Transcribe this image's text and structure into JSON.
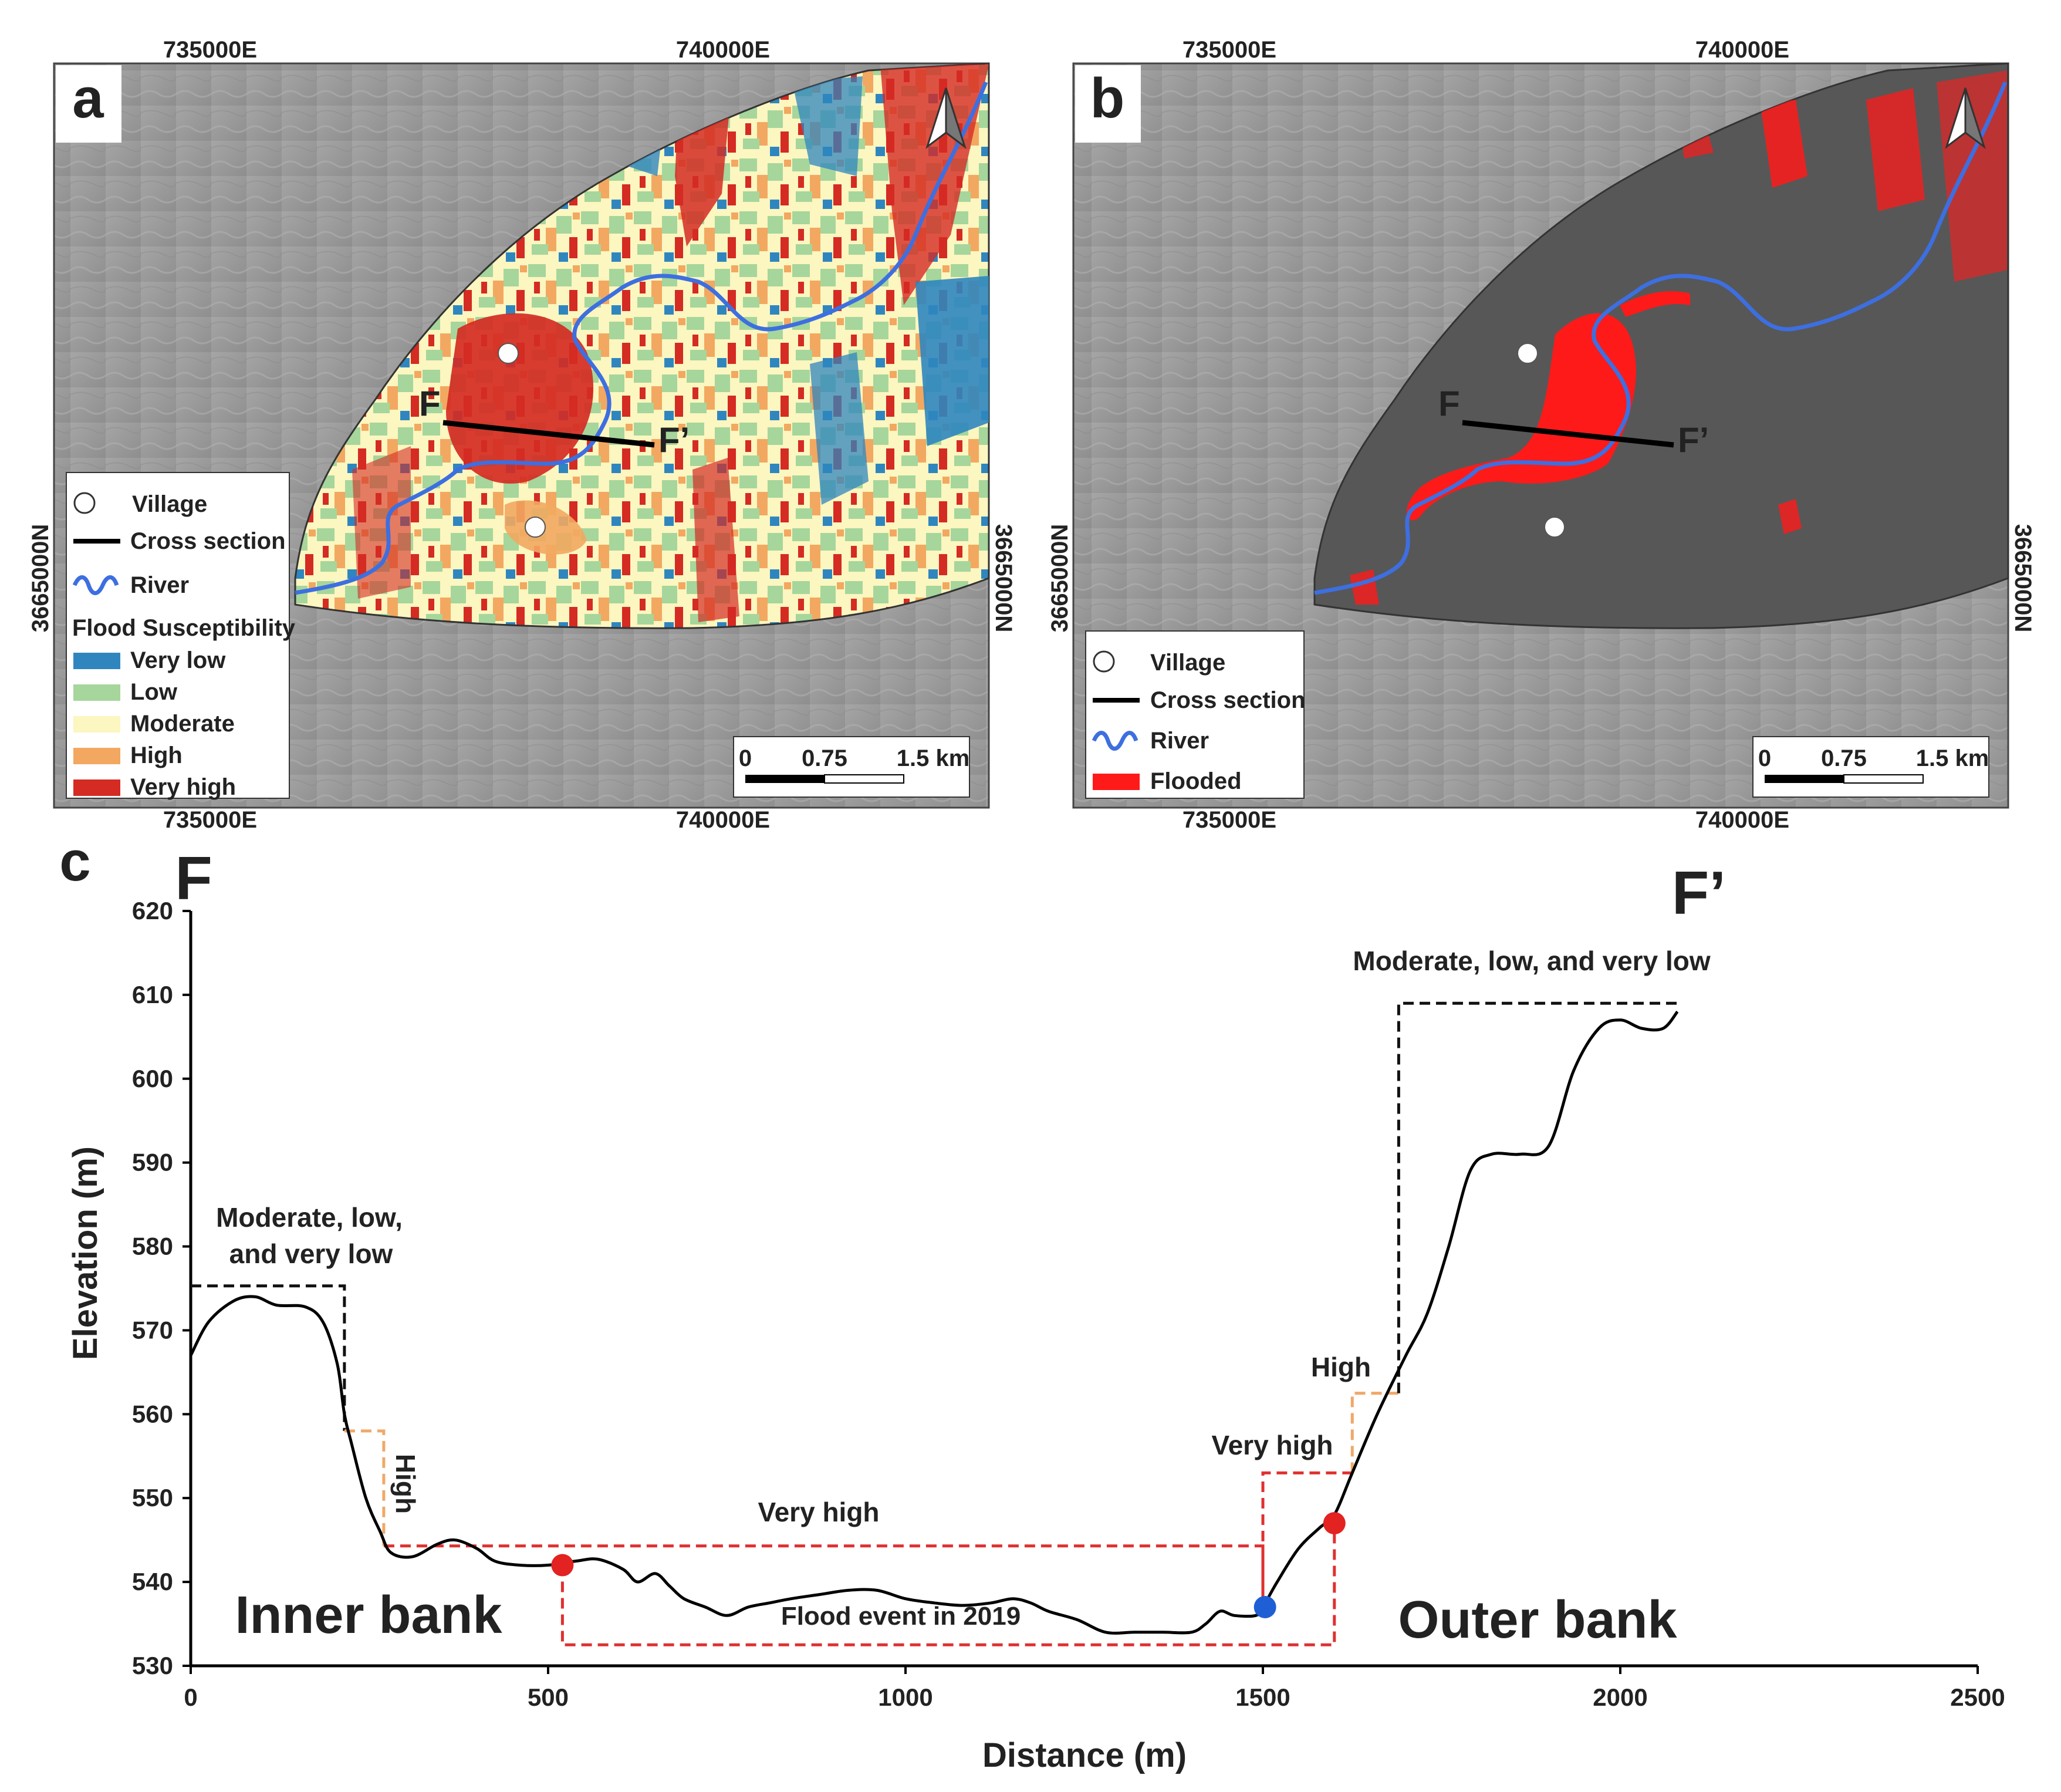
{
  "panel_a": {
    "letter": "a",
    "coords": {
      "top_left_e": "735000E",
      "top_right_e": "740000E",
      "bottom_left_e": "735000E",
      "bottom_right_e": "740000E",
      "left_n": "3665000N",
      "right_n": "3665000N"
    },
    "section_start": "F",
    "section_end": "F’",
    "legend": {
      "village": "Village",
      "cross_section": "Cross section",
      "river": "River",
      "susceptibility_title": "Flood Susceptibility",
      "classes": [
        {
          "label": "Very low",
          "color": "#2f86bf"
        },
        {
          "label": "Low",
          "color": "#a6d69b"
        },
        {
          "label": "Moderate",
          "color": "#fcf6c0"
        },
        {
          "label": "High",
          "color": "#f2a860"
        },
        {
          "label": "Very high",
          "color": "#d42b23"
        }
      ]
    },
    "scale": {
      "zero": "0",
      "mid": "0.75",
      "end": "1.5 km"
    }
  },
  "panel_b": {
    "letter": "b",
    "coords": {
      "top_left_e": "735000E",
      "top_right_e": "740000E",
      "bottom_left_e": "735000E",
      "bottom_right_e": "740000E",
      "left_n": "3665000N",
      "right_n": "3665000N"
    },
    "section_start": "F",
    "section_end": "F’",
    "legend": {
      "village": "Village",
      "cross_section": "Cross section",
      "river": "River",
      "flooded": "Flooded",
      "flooded_color": "#ff1a1a"
    },
    "scale": {
      "zero": "0",
      "mid": "0.75",
      "end": "1.5 km"
    }
  },
  "colors": {
    "river": "#3d6fe0",
    "hillshade": "#9c9c9c",
    "study_area_dark": "#555555"
  },
  "chart_data": {
    "type": "line",
    "panel_letter": "c",
    "start_label": "F",
    "end_label": "F’",
    "xlabel": "Distance (m)",
    "ylabel": "Elevation (m)",
    "xlim": [
      0,
      2500
    ],
    "ylim": [
      530,
      620
    ],
    "xticks": [
      0,
      500,
      1000,
      1500,
      2000,
      2500
    ],
    "yticks": [
      530,
      540,
      550,
      560,
      570,
      580,
      590,
      600,
      610,
      620
    ],
    "profile": [
      [
        0,
        567
      ],
      [
        25,
        571
      ],
      [
        60,
        573.5
      ],
      [
        90,
        574
      ],
      [
        120,
        573
      ],
      [
        160,
        572.8
      ],
      [
        185,
        571
      ],
      [
        205,
        566
      ],
      [
        215,
        560
      ],
      [
        225,
        556.5
      ],
      [
        245,
        550
      ],
      [
        265,
        546
      ],
      [
        280,
        543.5
      ],
      [
        310,
        543
      ],
      [
        345,
        544.5
      ],
      [
        370,
        545
      ],
      [
        400,
        544
      ],
      [
        425,
        542.5
      ],
      [
        460,
        542
      ],
      [
        500,
        542
      ],
      [
        540,
        542.5
      ],
      [
        570,
        542.7
      ],
      [
        605,
        541.5
      ],
      [
        625,
        540
      ],
      [
        650,
        541
      ],
      [
        670,
        539.5
      ],
      [
        690,
        538
      ],
      [
        720,
        537
      ],
      [
        750,
        536
      ],
      [
        780,
        537
      ],
      [
        810,
        537.5
      ],
      [
        840,
        538
      ],
      [
        880,
        538.5
      ],
      [
        920,
        539
      ],
      [
        960,
        539
      ],
      [
        1000,
        538
      ],
      [
        1040,
        537.5
      ],
      [
        1080,
        537.2
      ],
      [
        1120,
        537.5
      ],
      [
        1150,
        538
      ],
      [
        1175,
        537.5
      ],
      [
        1200,
        536.5
      ],
      [
        1240,
        535.5
      ],
      [
        1280,
        534
      ],
      [
        1320,
        534
      ],
      [
        1360,
        534
      ],
      [
        1400,
        534
      ],
      [
        1420,
        535
      ],
      [
        1440,
        536.5
      ],
      [
        1460,
        536
      ],
      [
        1490,
        536
      ],
      [
        1500,
        537
      ],
      [
        1520,
        540
      ],
      [
        1550,
        544
      ],
      [
        1580,
        546.5
      ],
      [
        1600,
        548
      ],
      [
        1625,
        553
      ],
      [
        1660,
        560
      ],
      [
        1700,
        567
      ],
      [
        1730,
        572
      ],
      [
        1760,
        580
      ],
      [
        1790,
        589
      ],
      [
        1820,
        591
      ],
      [
        1860,
        591
      ],
      [
        1900,
        592
      ],
      [
        1935,
        601
      ],
      [
        1970,
        606
      ],
      [
        2000,
        607
      ],
      [
        2030,
        606
      ],
      [
        2060,
        606
      ],
      [
        2080,
        608
      ]
    ],
    "markers": [
      {
        "x": 520,
        "y": 542,
        "color": "#e32222"
      },
      {
        "x": 1600,
        "y": 547,
        "color": "#e32222"
      },
      {
        "x": 1503,
        "y": 537,
        "color": "#1f5fd6"
      }
    ],
    "zones": [
      {
        "label": "Moderate, low,",
        "label2": "and very low",
        "color": "#111111"
      },
      {
        "label": "High",
        "color": "#f0a868"
      },
      {
        "label": "Very high",
        "color": "#e03030"
      },
      {
        "label": "Flood event in 2019",
        "color": "#e03030"
      },
      {
        "label": "Very high",
        "color": "#e03030"
      },
      {
        "label": "High",
        "color": "#f0a868"
      },
      {
        "label": "Moderate, low, and very low",
        "color": "#111111"
      }
    ],
    "side_labels": {
      "left": "Inner bank",
      "right": "Outer bank"
    }
  }
}
